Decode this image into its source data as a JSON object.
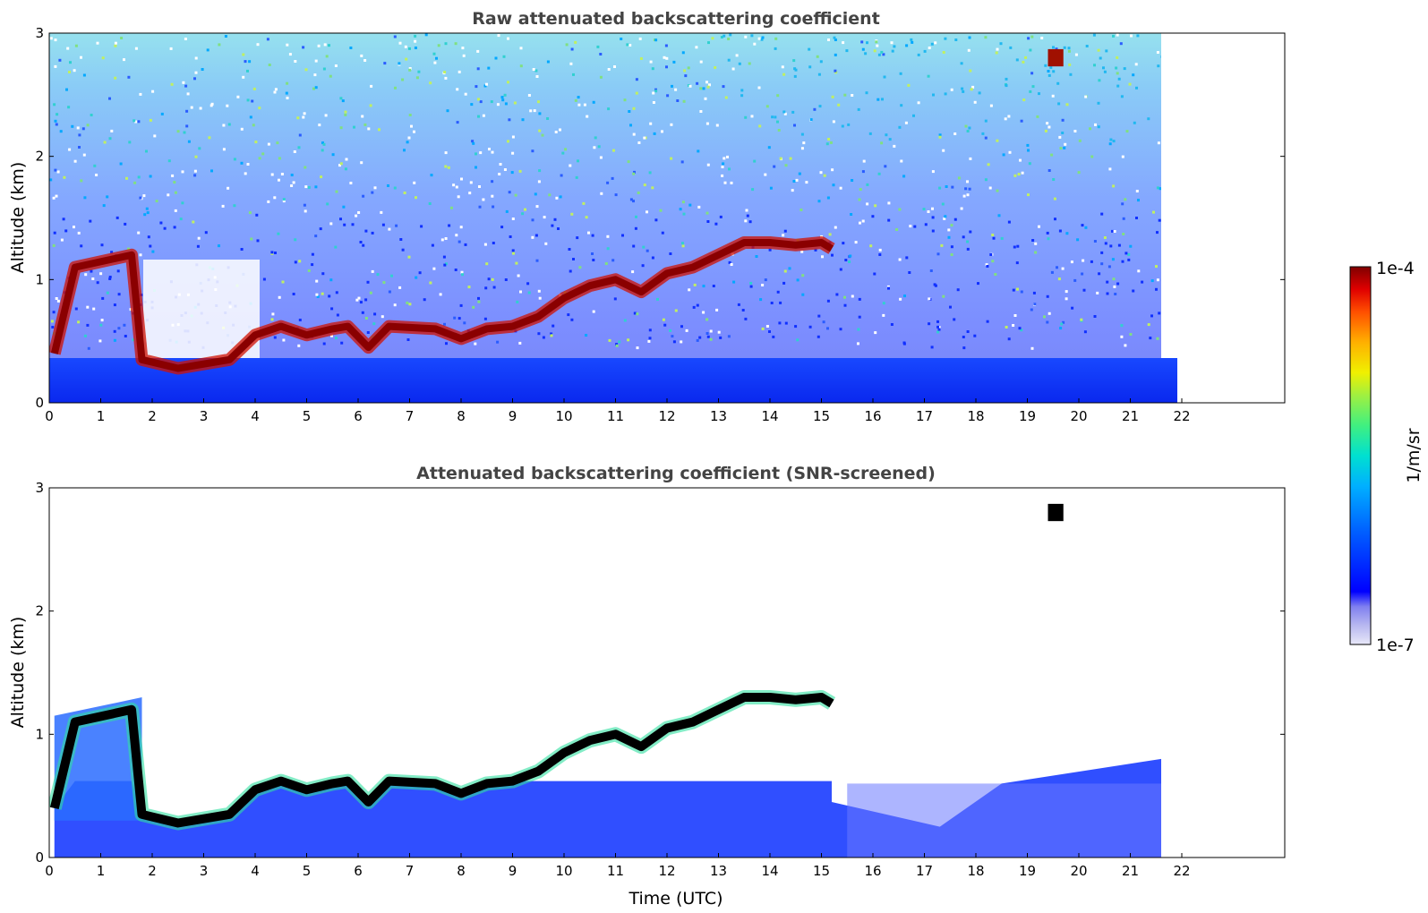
{
  "chart_data": [
    {
      "type": "heatmap",
      "title": "Raw attenuated backscattering coefficient",
      "xlabel": "",
      "ylabel": "Altitude (km)",
      "xlim": [
        0,
        24
      ],
      "ylim": [
        0,
        3
      ],
      "x_ticks": [
        0,
        1,
        2,
        3,
        4,
        5,
        6,
        7,
        8,
        9,
        10,
        11,
        12,
        13,
        14,
        15,
        16,
        17,
        18,
        19,
        20,
        21,
        22
      ],
      "y_ticks": [
        0,
        1,
        2,
        3
      ],
      "data_end_hour": 21.6,
      "cloud_layer_top_km": [
        [
          0.1,
          0.4
        ],
        [
          0.5,
          1.1
        ],
        [
          1.6,
          1.2
        ],
        [
          1.8,
          0.35
        ],
        [
          2.5,
          0.28
        ],
        [
          3.5,
          0.35
        ],
        [
          4.0,
          0.55
        ],
        [
          4.5,
          0.62
        ],
        [
          5.0,
          0.55
        ],
        [
          5.5,
          0.6
        ],
        [
          5.8,
          0.62
        ],
        [
          6.2,
          0.45
        ],
        [
          6.6,
          0.62
        ],
        [
          7.5,
          0.6
        ],
        [
          8.0,
          0.52
        ],
        [
          8.5,
          0.6
        ],
        [
          9.0,
          0.62
        ],
        [
          9.5,
          0.7
        ],
        [
          10.0,
          0.85
        ],
        [
          10.5,
          0.95
        ],
        [
          11.0,
          1.0
        ],
        [
          11.5,
          0.9
        ],
        [
          12.0,
          1.05
        ],
        [
          12.5,
          1.1
        ],
        [
          13.0,
          1.2
        ],
        [
          13.5,
          1.3
        ],
        [
          14.0,
          1.3
        ],
        [
          14.5,
          1.28
        ],
        [
          15.0,
          1.3
        ],
        [
          15.2,
          1.25
        ]
      ],
      "high_cloud": {
        "x_start": 19.4,
        "x_end": 19.7,
        "altitude_km": 2.8
      }
    },
    {
      "type": "heatmap",
      "title": "Attenuated backscattering coefficient (SNR-screened)",
      "xlabel": "Time (UTC)",
      "ylabel": "Altitude (km)",
      "xlim": [
        0,
        24
      ],
      "ylim": [
        0,
        3
      ],
      "x_ticks": [
        0,
        1,
        2,
        3,
        4,
        5,
        6,
        7,
        8,
        9,
        10,
        11,
        12,
        13,
        14,
        15,
        16,
        17,
        18,
        19,
        20,
        21,
        22
      ],
      "y_ticks": [
        0,
        1,
        2,
        3
      ],
      "data_end_hour": 21.6,
      "cloud_layer_top_km": [
        [
          0.1,
          0.4
        ],
        [
          0.5,
          1.1
        ],
        [
          1.6,
          1.2
        ],
        [
          1.8,
          0.35
        ],
        [
          2.5,
          0.28
        ],
        [
          3.5,
          0.35
        ],
        [
          4.0,
          0.55
        ],
        [
          4.5,
          0.62
        ],
        [
          5.0,
          0.55
        ],
        [
          5.5,
          0.6
        ],
        [
          5.8,
          0.62
        ],
        [
          6.2,
          0.45
        ],
        [
          6.6,
          0.62
        ],
        [
          7.5,
          0.6
        ],
        [
          8.0,
          0.52
        ],
        [
          8.5,
          0.6
        ],
        [
          9.0,
          0.62
        ],
        [
          9.5,
          0.7
        ],
        [
          10.0,
          0.85
        ],
        [
          10.5,
          0.95
        ],
        [
          11.0,
          1.0
        ],
        [
          11.5,
          0.9
        ],
        [
          12.0,
          1.05
        ],
        [
          12.5,
          1.1
        ],
        [
          13.0,
          1.2
        ],
        [
          13.5,
          1.3
        ],
        [
          14.0,
          1.3
        ],
        [
          14.5,
          1.28
        ],
        [
          15.0,
          1.3
        ],
        [
          15.2,
          1.25
        ]
      ],
      "high_cloud": {
        "x_start": 19.4,
        "x_end": 19.7,
        "altitude_km": 2.8
      }
    }
  ],
  "colorbar": {
    "min_label": "1e-7",
    "max_label": "1e-4",
    "label": "1/m/sr",
    "colors": [
      "#e8e8f8",
      "#b8b8f0",
      "#8080f0",
      "#0000ff",
      "#0060ff",
      "#00b0ff",
      "#00e0d0",
      "#40f080",
      "#a0f040",
      "#f0f000",
      "#ffb000",
      "#ff5000",
      "#e00000",
      "#800000"
    ]
  }
}
